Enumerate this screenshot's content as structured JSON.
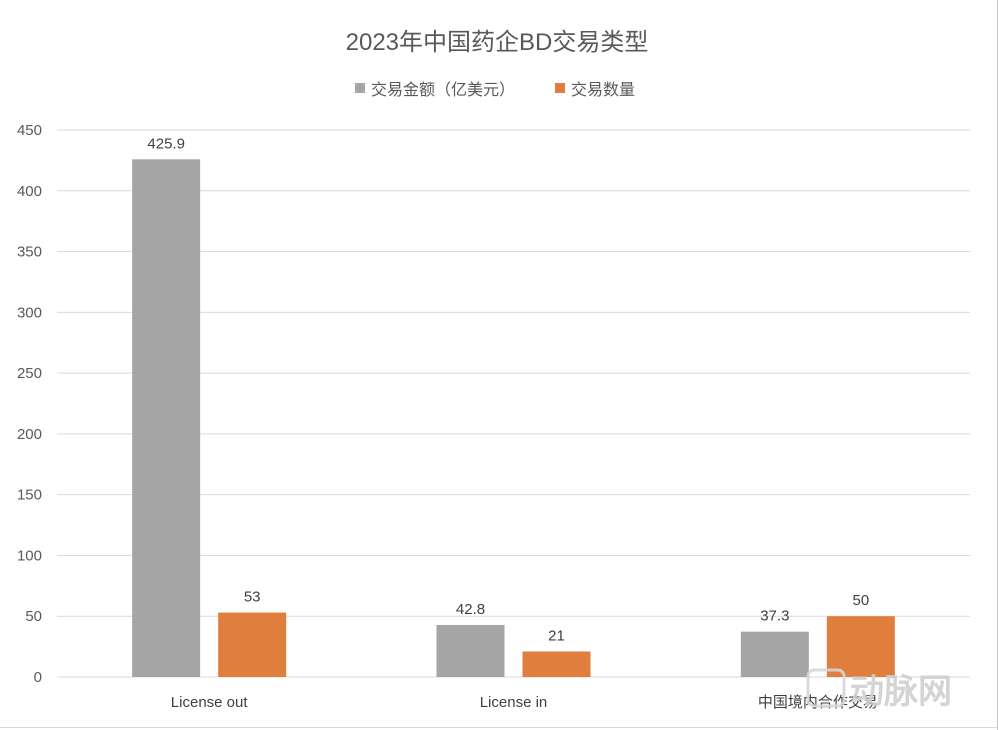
{
  "chart_data": {
    "type": "bar",
    "title": "2023年中国药企BD交易类型",
    "categories": [
      "License out",
      "License in",
      "中国境内合作交易"
    ],
    "series": [
      {
        "name": "交易金额（亿美元）",
        "values": [
          425.9,
          42.8,
          37.3
        ],
        "color": "#a5a5a5",
        "labels": [
          "425.9",
          "42.8",
          "37.3"
        ]
      },
      {
        "name": "交易数量",
        "values": [
          53,
          21,
          50
        ],
        "color": "#e07f3d",
        "labels": [
          "53",
          "21",
          "50"
        ]
      }
    ],
    "ylim": [
      0,
      450
    ],
    "yticks": [
      0,
      50,
      100,
      150,
      200,
      250,
      300,
      350,
      400,
      450
    ],
    "ytick_labels": [
      "0",
      "50",
      "100",
      "150",
      "200",
      "250",
      "300",
      "350",
      "400",
      "450"
    ],
    "grid": true,
    "legend_position": "top",
    "xlabel": "",
    "ylabel": ""
  },
  "watermark": {
    "text": "动脉网",
    "icon": "logo-icon"
  }
}
